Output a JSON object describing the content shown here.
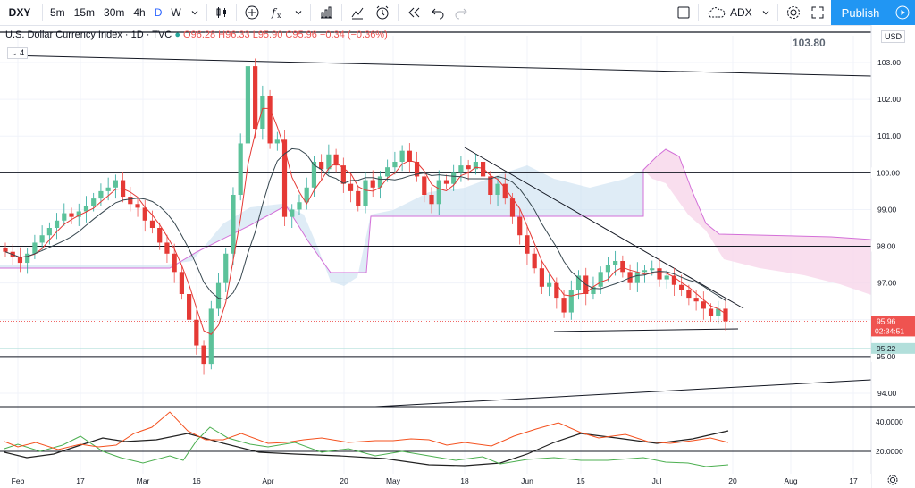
{
  "toolbar": {
    "symbol": "DXY",
    "intervals": [
      "5m",
      "15m",
      "30m",
      "4h",
      "D",
      "W"
    ],
    "active_interval": "D",
    "right_dropdown": "ADX",
    "publish_label": "Publish"
  },
  "legend": {
    "title": "U.S. Dollar Currency Index · 1D · TVC",
    "ohlc": "O96.28 H96.33 L95.90 C95.96 −0.34 (−0.36%)",
    "indicator_count": "4",
    "annotation_value": "103.80",
    "currency": "USD"
  },
  "colors": {
    "up": "#26a69a",
    "up_fill": "#5cc29a",
    "down": "#ef5350",
    "fast_ma": "#e53935",
    "slow_ma": "#37474f",
    "cloud_bull": "#c9dff0",
    "cloud_bear": "#f8d6ea",
    "cloud_span": "#d36fd8",
    "adx": "#212121",
    "di_plus": "#4caf50",
    "di_minus": "#f4511e",
    "accent": "#2196f3"
  },
  "chart_data": {
    "type": "candlestick",
    "title": "U.S. Dollar Currency Index · 1D · TVC",
    "ylim": [
      93.6,
      103.3
    ],
    "y_ticks": [
      "103.00",
      "102.00",
      "101.00",
      "100.00",
      "99.00",
      "98.00",
      "97.00",
      "96.00",
      "95.00",
      "94.00"
    ],
    "x_ticks": [
      "Feb",
      "17",
      "Mar",
      "16",
      "Apr",
      "20",
      "May",
      "18",
      "Jun",
      "15",
      "Jul",
      "20",
      "Aug",
      "17"
    ],
    "price_labels": {
      "current": "95.96",
      "countdown": "02:34:51",
      "level_a": "95.22",
      "level_100": "100.00",
      "level_98": "98.00",
      "level_95": "95.00"
    },
    "candles_close": [
      97.85,
      97.7,
      97.55,
      97.8,
      98.1,
      98.3,
      98.5,
      98.7,
      98.9,
      98.8,
      98.95,
      99.1,
      99.3,
      99.5,
      99.6,
      99.8,
      99.35,
      99.15,
      99.05,
      98.7,
      98.5,
      98.1,
      97.8,
      97.3,
      96.7,
      96.0,
      95.3,
      94.8,
      96.3,
      97.0,
      97.8,
      99.4,
      100.8,
      102.9,
      101.2,
      102.1,
      100.8,
      100.9,
      98.8,
      99.0,
      99.2,
      99.6,
      100.3,
      100.1,
      100.5,
      100.2,
      99.7,
      99.5,
      99.1,
      99.8,
      99.6,
      99.9,
      100.15,
      100.3,
      100.6,
      100.3,
      99.9,
      99.4,
      99.15,
      99.8,
      99.7,
      100.0,
      100.2,
      100.1,
      100.3,
      99.9,
      99.4,
      99.7,
      99.3,
      98.8,
      98.3,
      97.8,
      97.4,
      96.9,
      97.0,
      96.6,
      96.2,
      96.8,
      97.2,
      96.7,
      96.9,
      97.3,
      97.5,
      97.6,
      97.3,
      97.0,
      97.3,
      97.35,
      97.4,
      97.1,
      97.2,
      96.95,
      96.8,
      96.6,
      96.5,
      96.3,
      96.1,
      96.3,
      95.96
    ],
    "bollinger_like_ma_fast_note": "",
    "adx_panel": {
      "y_ticks": [
        "40.0000",
        "20.0000"
      ],
      "level": 20
    }
  }
}
